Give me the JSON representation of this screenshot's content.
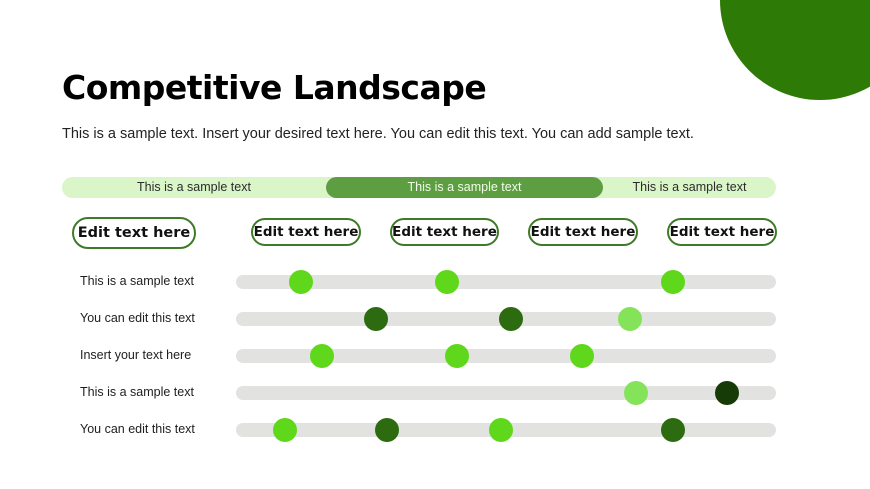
{
  "colors": {
    "accent": "#2d7a06",
    "band_light": "#daf6c8",
    "band_active": "#5e9e43",
    "track": "#e2e3e0",
    "dot_bright": "#5fd71a",
    "dot_dark": "#2c6b0f",
    "dot_light": "#85e35a",
    "dot_darkest": "#163b06"
  },
  "title": "Competitive Landscape",
  "subtitle": "This is a sample text. Insert your desired text here. You can edit this text. You can add sample text.",
  "band": {
    "segments": [
      {
        "label": "This is a sample text",
        "active": false
      },
      {
        "label": "This is a sample text",
        "active": true
      },
      {
        "label": "This is a sample text",
        "active": false
      }
    ]
  },
  "header_pills": [
    "Edit text here",
    "Edit text here",
    "Edit text here",
    "Edit text here",
    "Edit text here"
  ],
  "rows": [
    {
      "label": "This is a sample text",
      "dots": [
        {
          "pos": 0.12,
          "shade": "bright"
        },
        {
          "pos": 0.39,
          "shade": "bright"
        },
        {
          "pos": 0.81,
          "shade": "bright"
        }
      ]
    },
    {
      "label": "You can edit this text",
      "dots": [
        {
          "pos": 0.26,
          "shade": "dark"
        },
        {
          "pos": 0.51,
          "shade": "dark"
        },
        {
          "pos": 0.73,
          "shade": "light"
        }
      ]
    },
    {
      "label": "Insert your text here",
      "dots": [
        {
          "pos": 0.16,
          "shade": "bright"
        },
        {
          "pos": 0.41,
          "shade": "bright"
        },
        {
          "pos": 0.64,
          "shade": "bright"
        }
      ]
    },
    {
      "label": "This is a sample text",
      "dots": [
        {
          "pos": 0.74,
          "shade": "light"
        },
        {
          "pos": 0.91,
          "shade": "darkest"
        }
      ]
    },
    {
      "label": "You can edit this text",
      "dots": [
        {
          "pos": 0.09,
          "shade": "bright"
        },
        {
          "pos": 0.28,
          "shade": "dark"
        },
        {
          "pos": 0.49,
          "shade": "bright"
        },
        {
          "pos": 0.81,
          "shade": "dark"
        }
      ]
    }
  ]
}
